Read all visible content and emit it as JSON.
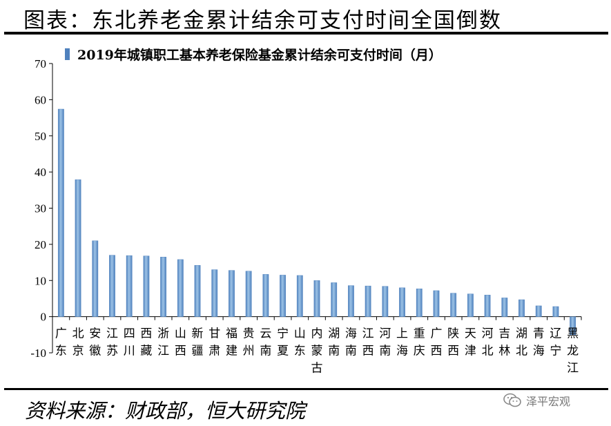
{
  "header": {
    "title": "图表：东北养老金累计结余可支付时间全国倒数"
  },
  "footer": {
    "source": "资料来源：财政部，恒大研究院",
    "watermark": "泽平宏观"
  },
  "colors": {
    "bar": "#4f81bd",
    "bar_highlight": "#9dc3e6",
    "axis": "#000000"
  },
  "chart_data": {
    "type": "bar",
    "legend": {
      "label": "2019年城镇职工基本养老保险基金累计结余可支付时间（月）",
      "position": "top"
    },
    "ylim": [
      -10,
      70
    ],
    "yticks": [
      -10,
      0,
      10,
      20,
      30,
      40,
      50,
      60,
      70
    ],
    "grid": false,
    "categories": [
      [
        "广",
        "东"
      ],
      [
        "北",
        "京"
      ],
      [
        "安",
        "徽"
      ],
      [
        "江",
        "苏"
      ],
      [
        "四",
        "川"
      ],
      [
        "西",
        "藏"
      ],
      [
        "浙",
        "江"
      ],
      [
        "山",
        "西"
      ],
      [
        "新",
        "疆"
      ],
      [
        "甘",
        "肃"
      ],
      [
        "福",
        "建"
      ],
      [
        "贵",
        "州"
      ],
      [
        "云",
        "南"
      ],
      [
        "宁",
        "夏"
      ],
      [
        "山",
        "东"
      ],
      [
        "内",
        "蒙",
        "古"
      ],
      [
        "湖",
        "南"
      ],
      [
        "海",
        "南"
      ],
      [
        "江",
        "西"
      ],
      [
        "河",
        "南"
      ],
      [
        "上",
        "海"
      ],
      [
        "重",
        "庆"
      ],
      [
        "广",
        "西"
      ],
      [
        "陕",
        "西"
      ],
      [
        "天",
        "津"
      ],
      [
        "河",
        "北"
      ],
      [
        "吉",
        "林"
      ],
      [
        "湖",
        "北"
      ],
      [
        "青",
        "海"
      ],
      [
        "辽",
        "宁"
      ],
      [
        "黑",
        "龙",
        "江"
      ]
    ],
    "values": [
      57.4,
      37.9,
      21.0,
      17.0,
      16.9,
      16.8,
      16.5,
      15.8,
      14.2,
      13.0,
      12.8,
      12.6,
      11.7,
      11.5,
      11.4,
      10.0,
      9.4,
      8.6,
      8.5,
      8.4,
      8.0,
      7.7,
      7.2,
      6.5,
      6.3,
      6.0,
      5.2,
      4.7,
      3.0,
      2.8,
      -5.0
    ]
  }
}
